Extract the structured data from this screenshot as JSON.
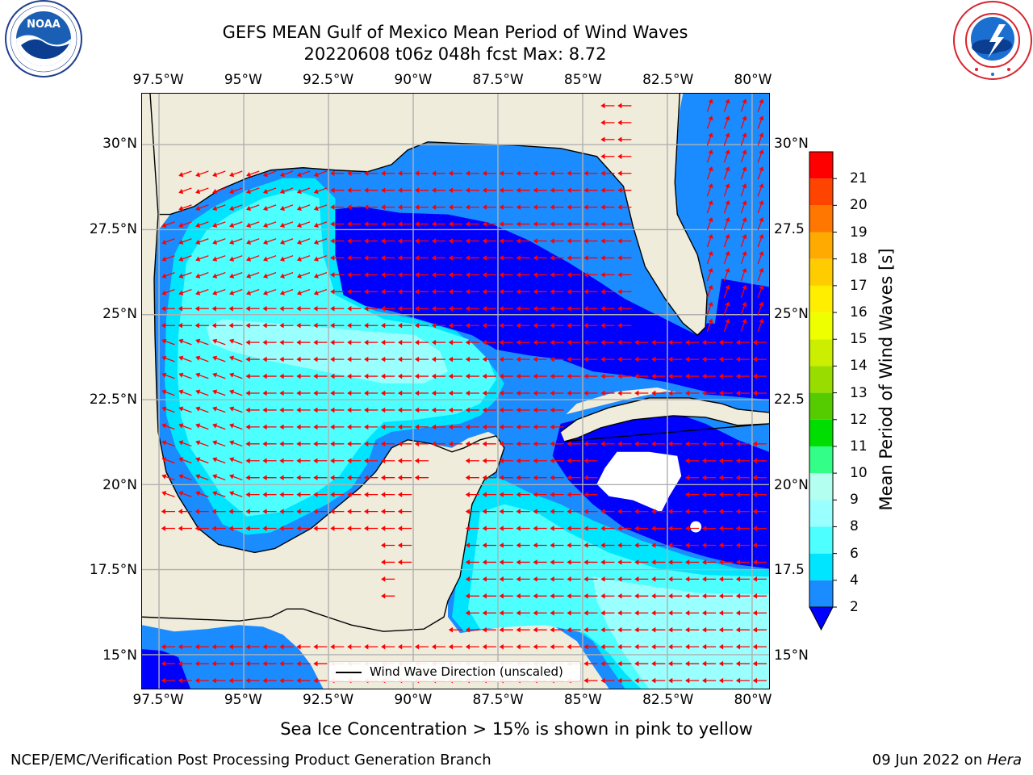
{
  "title": {
    "line1": "GEFS MEAN Gulf of Mexico Mean Period of Wind Waves",
    "line2": "20220608 t06z 048h fcst   Max: 8.72"
  },
  "logos": {
    "left": {
      "name": "NOAA",
      "ring_text": "NATIONAL OCEANIC AND ATMOSPHERIC ADMINISTRATION · U.S. DEPARTMENT OF COMMERCE"
    },
    "right": {
      "name": "NATIONAL WEATHER SERVICE"
    }
  },
  "axes": {
    "lon_labels": [
      "97.5°W",
      "95°W",
      "92.5°W",
      "90°W",
      "87.5°W",
      "85°W",
      "82.5°W",
      "80°W"
    ],
    "lat_labels_left": [
      "30°N",
      "27.5°N",
      "25°N",
      "22.5°N",
      "20°N",
      "17.5°N",
      "15°N"
    ],
    "lat_labels_right": [
      "30°N",
      "27.5",
      "25°N",
      "22.5",
      "20°N",
      "17.5",
      "15°N"
    ],
    "lon_range": [
      -98,
      -79.5
    ],
    "lat_range": [
      14,
      31.5
    ],
    "grid": true
  },
  "legend": {
    "line_label": "Wind Wave Direction (unscaled)",
    "position": "lower-center"
  },
  "colorbar": {
    "label": "Mean Period of Wind Waves [s]",
    "ticks": [
      "2",
      "4",
      "6",
      "8",
      "9",
      "10",
      "11",
      "12",
      "13",
      "14",
      "15",
      "16",
      "17",
      "18",
      "19",
      "20",
      "21"
    ],
    "colors": [
      "#1a8cff",
      "#00e5ff",
      "#4dffff",
      "#99ffff",
      "#b3fff0",
      "#33ff88",
      "#00dd00",
      "#55cc00",
      "#99dd00",
      "#ccee00",
      "#eeff00",
      "#ffee00",
      "#ffcc00",
      "#ffaa00",
      "#ff7700",
      "#ff4400",
      "#ff0000"
    ],
    "under_color": "#0000ff",
    "extend": "min"
  },
  "map_colors": {
    "land": "#efecdc",
    "ocean_under2": "#0000ff",
    "level_2_4": "#1a8cff",
    "level_4_6": "#00e5ff",
    "level_6_8": "#4dffff",
    "level_8_9": "#99ffff",
    "arrow": "#ff0000"
  },
  "footer": {
    "note": "Sea Ice Concentration > 15% is shown in pink to yellow",
    "left": "NCEP/EMC/Verification Post Processing Product Generation Branch",
    "right_prefix": "09 Jun 2022 on ",
    "right_host": "Hera"
  }
}
